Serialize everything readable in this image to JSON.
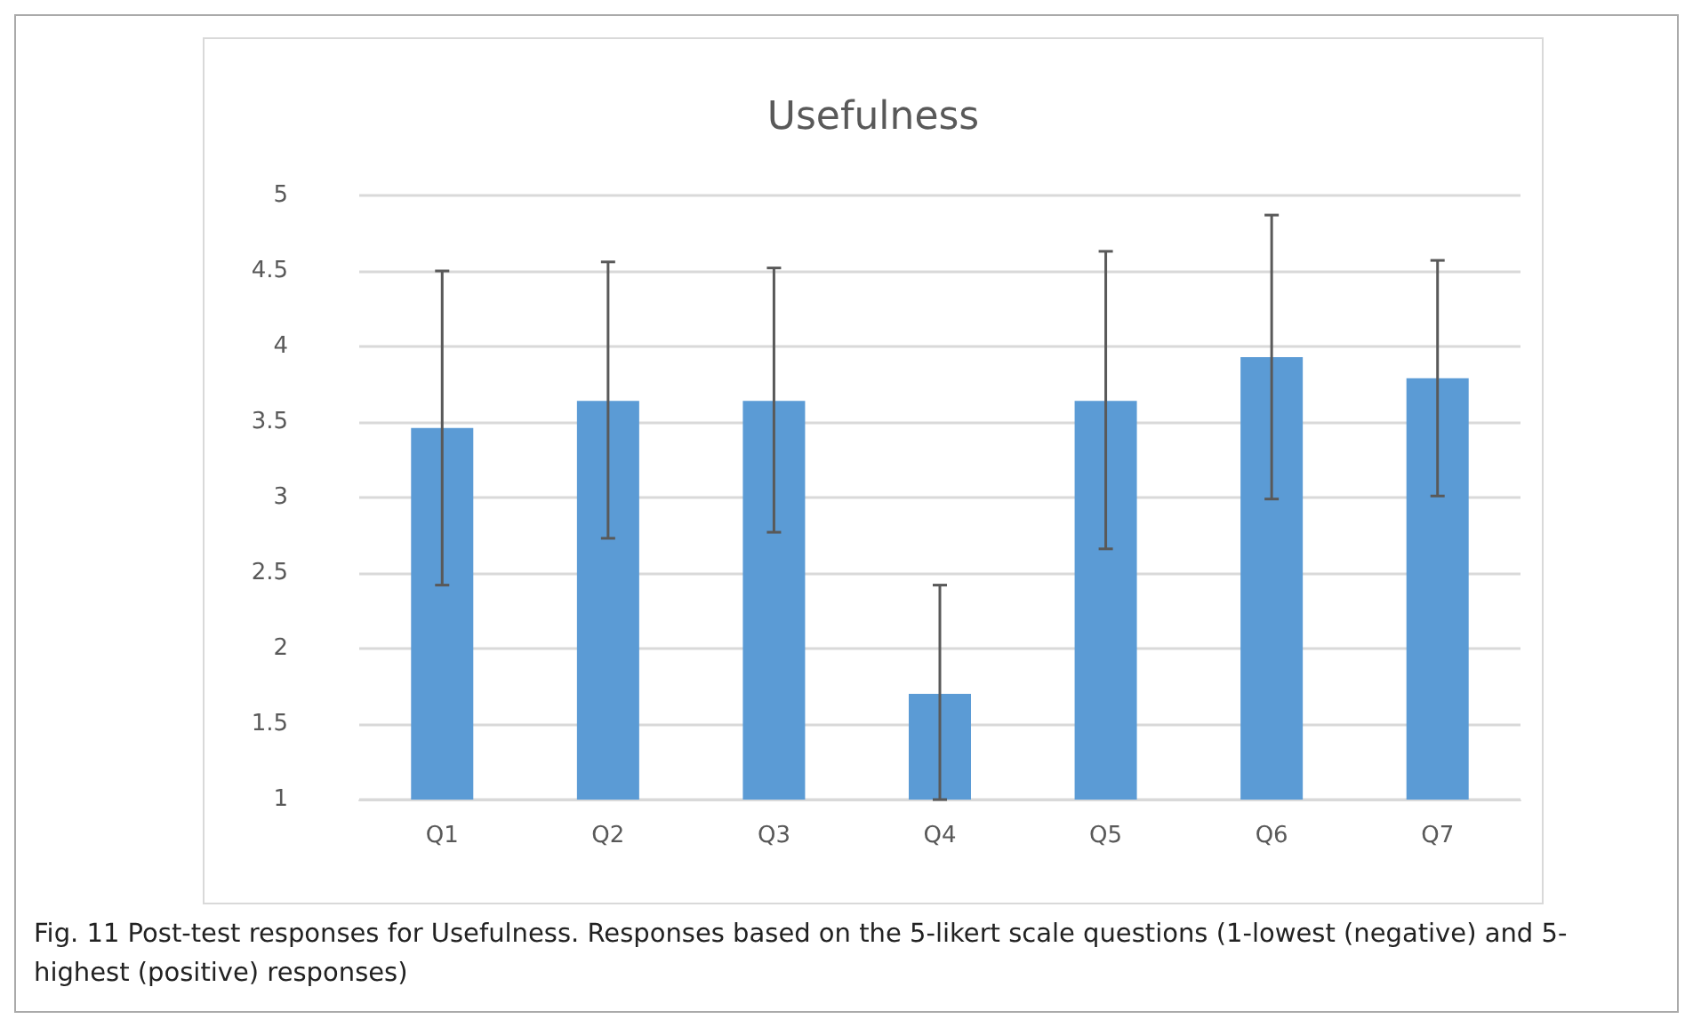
{
  "chart_data": {
    "type": "bar",
    "title": "Usefulness",
    "categories": [
      "Q1",
      "Q2",
      "Q3",
      "Q4",
      "Q5",
      "Q6",
      "Q7"
    ],
    "values": [
      3.46,
      3.64,
      3.64,
      1.7,
      3.64,
      3.93,
      3.79
    ],
    "errors": [
      [
        2.42,
        4.5
      ],
      [
        2.73,
        4.56
      ],
      [
        2.77,
        4.52
      ],
      [
        1,
        2.42
      ],
      [
        2.66,
        4.63
      ],
      [
        2.99,
        4.87
      ],
      [
        3.01,
        4.57
      ]
    ],
    "color": "#5b9bd5",
    "ylim": [
      1,
      5
    ],
    "yticks": [
      1,
      1.5,
      2,
      2.5,
      3,
      3.5,
      4,
      4.5,
      5
    ],
    "grid": "y",
    "annotations": [
      "Fig. 11  Post-test responses for Usefulness. Responses based on the 5-likert scale questions (1-lowest (negative) and 5-highest (positive) responses)"
    ]
  }
}
